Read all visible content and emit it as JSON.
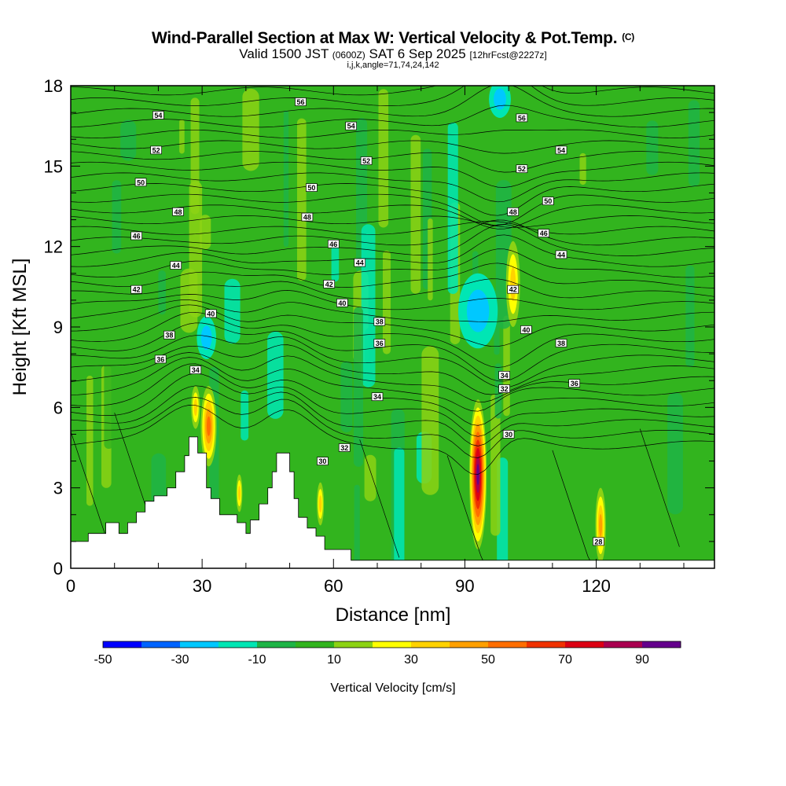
{
  "title": {
    "line1": "Wind-Parallel Section at Max W: Vertical Velocity & Pot.Temp.",
    "copyright": "(C)",
    "line2_prefix": "Valid 1500 JST",
    "line2_zulu": "(0600Z)",
    "line2_date": "SAT 6 Sep 2025",
    "line2_run": "[12hrFcst@2227z]",
    "line3": "i,j,k,angle=71,74,24,142"
  },
  "chart_data": {
    "type": "heatmap",
    "title": "Wind-Parallel Section at Max W: Vertical Velocity & Pot.Temp.",
    "xlabel": "Distance [nm]",
    "ylabel": "Height [Kft MSL]",
    "xlim": [
      0,
      147
    ],
    "ylim": [
      0,
      18
    ],
    "xticks": [
      0,
      30,
      60,
      90,
      120
    ],
    "yticks": [
      0,
      3,
      6,
      9,
      12,
      15,
      18
    ],
    "colorbar": {
      "label": "Vertical Velocity [cm/s]",
      "bounds": [
        -50,
        100
      ],
      "step": 10,
      "tick_labels": [
        -50,
        -30,
        -10,
        10,
        30,
        50,
        70,
        90
      ],
      "colors": [
        "#0000ff",
        "#0064ff",
        "#00c8ff",
        "#00e6b4",
        "#1eb446",
        "#32b41e",
        "#8cd214",
        "#ffff00",
        "#ffd200",
        "#ffa000",
        "#ff6e00",
        "#f03200",
        "#dc0014",
        "#aa0050",
        "#64008c"
      ]
    },
    "terrain": [
      [
        0,
        1
      ],
      [
        4,
        1
      ],
      [
        4,
        1.3
      ],
      [
        8,
        1.3
      ],
      [
        8,
        1.7
      ],
      [
        11,
        1.7
      ],
      [
        11,
        1.3
      ],
      [
        13,
        1.3
      ],
      [
        13,
        1.7
      ],
      [
        15,
        1.7
      ],
      [
        15,
        2.1
      ],
      [
        17,
        2.1
      ],
      [
        17,
        2.5
      ],
      [
        19,
        2.5
      ],
      [
        19,
        2.7
      ],
      [
        22,
        2.7
      ],
      [
        22,
        3.0
      ],
      [
        24,
        3.0
      ],
      [
        24,
        3.6
      ],
      [
        26,
        3.6
      ],
      [
        26,
        4.2
      ],
      [
        27,
        4.2
      ],
      [
        27,
        4.9
      ],
      [
        29,
        4.9
      ],
      [
        29,
        4.3
      ],
      [
        31,
        4.3
      ],
      [
        31,
        3.0
      ],
      [
        32,
        3.0
      ],
      [
        32,
        2.6
      ],
      [
        34,
        2.6
      ],
      [
        34,
        2.0
      ],
      [
        38,
        2.0
      ],
      [
        38,
        1.7
      ],
      [
        40,
        1.7
      ],
      [
        40,
        1.3
      ],
      [
        41,
        1.3
      ],
      [
        41,
        1.8
      ],
      [
        43,
        1.8
      ],
      [
        43,
        2.4
      ],
      [
        45,
        2.4
      ],
      [
        45,
        3.0
      ],
      [
        46,
        3.0
      ],
      [
        46,
        3.6
      ],
      [
        47,
        3.6
      ],
      [
        47,
        4.3
      ],
      [
        50,
        4.3
      ],
      [
        50,
        3.6
      ],
      [
        51,
        3.6
      ],
      [
        51,
        2.6
      ],
      [
        52,
        2.6
      ],
      [
        52,
        1.9
      ],
      [
        54,
        1.9
      ],
      [
        54,
        1.5
      ],
      [
        56,
        1.5
      ],
      [
        56,
        1.2
      ],
      [
        58,
        1.2
      ],
      [
        58,
        0.7
      ],
      [
        64,
        0.7
      ],
      [
        64,
        0.3
      ],
      [
        147,
        0.3
      ]
    ],
    "theta_labels": [
      {
        "x": 20,
        "y": 16.9,
        "v": "54"
      },
      {
        "x": 19.5,
        "y": 15.6,
        "v": "52"
      },
      {
        "x": 16,
        "y": 14.4,
        "v": "50"
      },
      {
        "x": 24.5,
        "y": 13.3,
        "v": "48"
      },
      {
        "x": 15,
        "y": 12.4,
        "v": "46"
      },
      {
        "x": 24,
        "y": 11.3,
        "v": "44"
      },
      {
        "x": 15,
        "y": 10.4,
        "v": "42"
      },
      {
        "x": 32,
        "y": 9.5,
        "v": "40"
      },
      {
        "x": 22.5,
        "y": 8.7,
        "v": "38"
      },
      {
        "x": 20.5,
        "y": 7.8,
        "v": "36"
      },
      {
        "x": 28.5,
        "y": 7.4,
        "v": "34"
      },
      {
        "x": 52.5,
        "y": 17.4,
        "v": "56"
      },
      {
        "x": 64,
        "y": 16.5,
        "v": "54"
      },
      {
        "x": 67.5,
        "y": 15.2,
        "v": "52"
      },
      {
        "x": 55,
        "y": 14.2,
        "v": "50"
      },
      {
        "x": 54,
        "y": 13.1,
        "v": "48"
      },
      {
        "x": 60,
        "y": 12.1,
        "v": "46"
      },
      {
        "x": 66,
        "y": 11.4,
        "v": "44"
      },
      {
        "x": 59,
        "y": 10.6,
        "v": "42"
      },
      {
        "x": 62,
        "y": 9.9,
        "v": "40"
      },
      {
        "x": 70.5,
        "y": 9.2,
        "v": "38"
      },
      {
        "x": 70.5,
        "y": 8.4,
        "v": "36"
      },
      {
        "x": 70,
        "y": 6.4,
        "v": "34"
      },
      {
        "x": 62.5,
        "y": 4.5,
        "v": "32"
      },
      {
        "x": 57.5,
        "y": 4.0,
        "v": "30"
      },
      {
        "x": 103,
        "y": 16.8,
        "v": "56"
      },
      {
        "x": 112,
        "y": 15.6,
        "v": "54"
      },
      {
        "x": 103,
        "y": 14.9,
        "v": "52"
      },
      {
        "x": 109,
        "y": 13.7,
        "v": "50"
      },
      {
        "x": 101,
        "y": 13.3,
        "v": "48"
      },
      {
        "x": 108,
        "y": 12.5,
        "v": "46"
      },
      {
        "x": 112,
        "y": 11.7,
        "v": "44"
      },
      {
        "x": 101,
        "y": 10.4,
        "v": "42"
      },
      {
        "x": 104,
        "y": 8.9,
        "v": "40"
      },
      {
        "x": 112,
        "y": 8.4,
        "v": "38"
      },
      {
        "x": 115,
        "y": 6.9,
        "v": "36"
      },
      {
        "x": 99,
        "y": 7.2,
        "v": "34"
      },
      {
        "x": 99,
        "y": 6.7,
        "v": "32"
      },
      {
        "x": 100,
        "y": 5.0,
        "v": "30"
      },
      {
        "x": 120.5,
        "y": 1.0,
        "v": "28"
      }
    ],
    "w_features": [
      {
        "x": 93,
        "y": 3.5,
        "rx": 2.0,
        "ry": 2.8,
        "w": 95
      },
      {
        "x": 31.5,
        "y": 5.3,
        "rx": 1.8,
        "ry": 1.5,
        "w": 55
      },
      {
        "x": 28.5,
        "y": 6.0,
        "rx": 1.0,
        "ry": 0.8,
        "w": 35
      },
      {
        "x": 101,
        "y": 10.6,
        "rx": 1.6,
        "ry": 1.6,
        "w": 35
      },
      {
        "x": 93,
        "y": 9.6,
        "rx": 4.5,
        "ry": 1.4,
        "w": -25
      },
      {
        "x": 98,
        "y": 17.5,
        "rx": 2.5,
        "ry": 0.7,
        "w": -25
      },
      {
        "x": 31,
        "y": 8.6,
        "rx": 2.2,
        "ry": 0.8,
        "w": -25
      },
      {
        "x": 121,
        "y": 1.6,
        "rx": 1.2,
        "ry": 1.4,
        "w": 40
      },
      {
        "x": 57,
        "y": 2.4,
        "rx": 0.8,
        "ry": 0.8,
        "w": 30
      },
      {
        "x": 38.5,
        "y": 2.8,
        "rx": 0.7,
        "ry": 0.7,
        "w": 30
      }
    ]
  }
}
